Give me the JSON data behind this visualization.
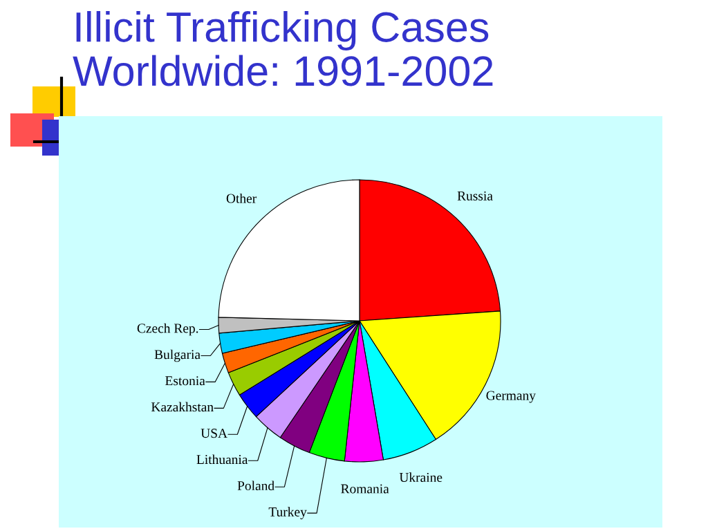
{
  "chart_data": {
    "type": "pie",
    "title": "Illicit Trafficking Cases\nWorldwide: 1991-2002",
    "categories": [
      "Russia",
      "Germany",
      "Ukraine",
      "Romania",
      "Turkey",
      "Poland",
      "Lithuania",
      "USA",
      "Kazakhstan",
      "Estonia",
      "Bulgaria",
      "Czech Rep.",
      "Other"
    ],
    "values": [
      23.9,
      17.0,
      6.4,
      4.4,
      4.1,
      3.7,
      3.6,
      3.1,
      2.8,
      2.3,
      2.3,
      1.8,
      24.6
    ],
    "colors": [
      "#ff0000",
      "#ffff00",
      "#00ffff",
      "#ff00ff",
      "#00ff00",
      "#800080",
      "#cc99ff",
      "#0000ff",
      "#99cc00",
      "#ff6600",
      "#00ccff",
      "#c0c0c0",
      "#ffffff"
    ]
  }
}
